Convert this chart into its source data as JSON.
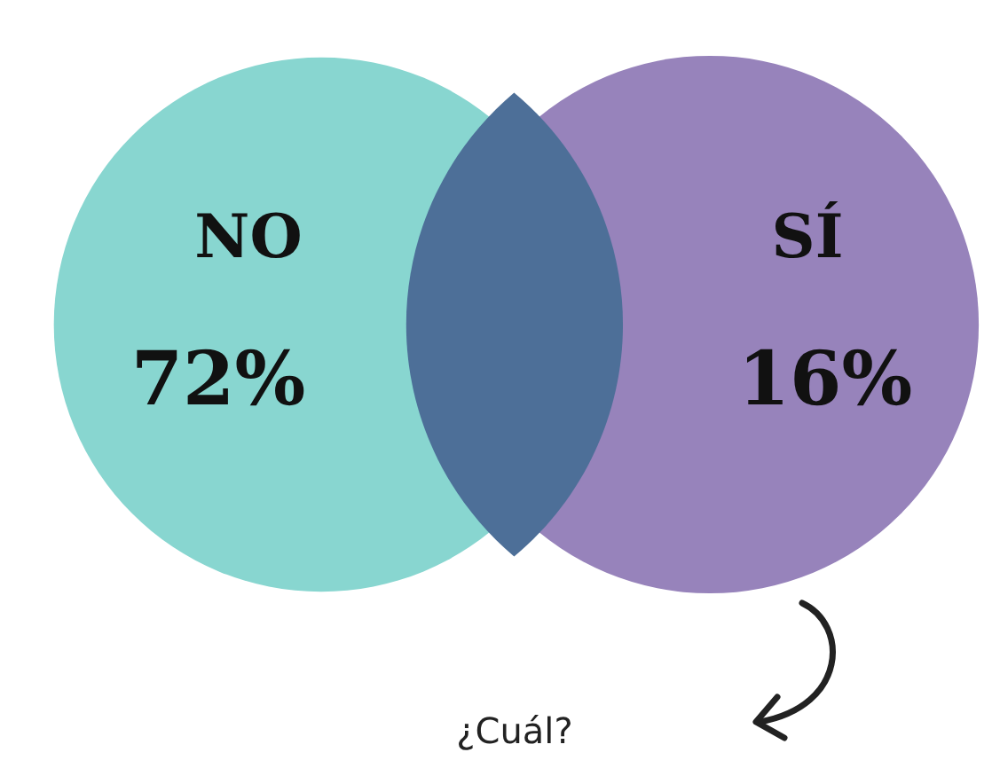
{
  "chart_data": {
    "type": "other",
    "categories": [
      "NO",
      "SÍ"
    ],
    "values": [
      72,
      16
    ],
    "value_labels": [
      "72%",
      "16%"
    ],
    "colors": [
      "#88d6d0",
      "#9783bb"
    ],
    "annotations": [
      "¿Cuál?"
    ]
  }
}
